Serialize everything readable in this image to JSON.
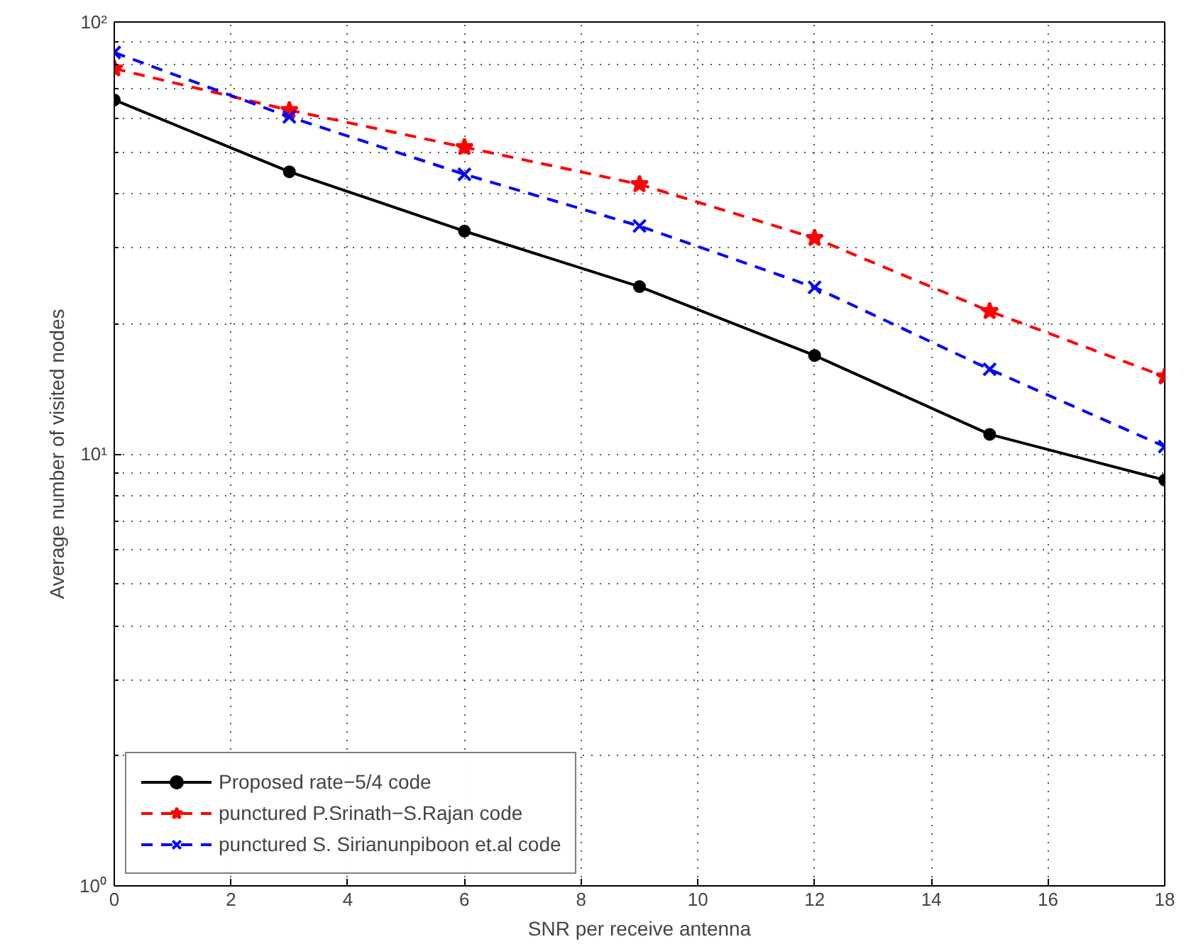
{
  "chart_data": {
    "type": "line",
    "xlabel": "SNR per receive antenna",
    "ylabel": "Average number of visited nodes",
    "x": [
      0,
      3,
      6,
      9,
      12,
      15,
      18
    ],
    "series": [
      {
        "name": "Proposed rate−5/4 code",
        "color": "#000000",
        "marker": "circle",
        "line_style": "solid",
        "values": [
          66,
          45,
          32.8,
          24.4,
          16.9,
          11.1,
          8.7
        ]
      },
      {
        "name": "punctured P.Srinath−S.Rajan code",
        "color": "#ff0000",
        "marker": "star",
        "line_style": "dashed",
        "values": [
          78,
          62.5,
          51.3,
          42.1,
          31.6,
          21.4,
          15.1
        ]
      },
      {
        "name": "punctured S. Sirianunpiboon et.al code",
        "color": "#0000ff",
        "marker": "cross",
        "line_style": "dashed",
        "values": [
          85,
          60.3,
          44.4,
          33.7,
          24.3,
          15.7,
          10.4
        ]
      }
    ],
    "log": "y",
    "xlim": [
      0,
      18
    ],
    "ylim": [
      1,
      100
    ],
    "xticks": [
      0,
      2,
      4,
      6,
      8,
      10,
      12,
      14,
      16,
      18
    ],
    "yticks": [
      {
        "value": 1,
        "label": "10⁰"
      },
      {
        "value": 10,
        "label": "10¹"
      },
      {
        "value": 100,
        "label": "10²"
      }
    ],
    "grid": true,
    "legend": "bottom left"
  }
}
